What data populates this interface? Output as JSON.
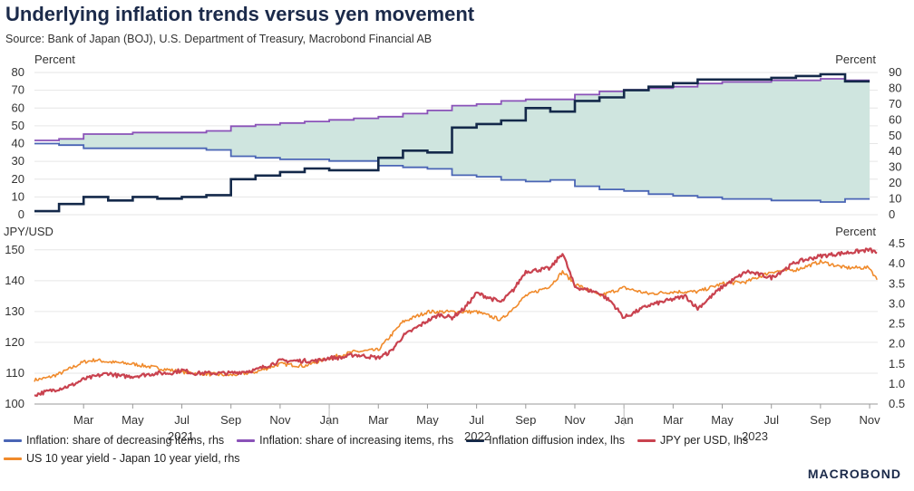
{
  "title": "Underlying inflation trends versus yen movement",
  "source": "Source: Bank of Japan (BOJ), U.S. Department of Treasury, Macrobond Financial AB",
  "brand": "MACROBOND",
  "colors": {
    "decreasing": "#4a65b5",
    "increasing": "#8a52b8",
    "diffusion": "#14294a",
    "jpy": "#c9424f",
    "yield": "#f08a2b",
    "fill": "#cfe5df",
    "grid": "#e6e6e6"
  },
  "legend": [
    {
      "label": "Inflation: share of decreasing items, rhs",
      "color": "#4a65b5"
    },
    {
      "label": "Inflation: share of increasing items, rhs",
      "color": "#8a52b8"
    },
    {
      "label": "Inflation diffusion index, lhs",
      "color": "#14294a"
    },
    {
      "label": "JPY per USD, lhs",
      "color": "#c9424f"
    },
    {
      "label": "US 10 year yield - Japan 10 year yield, rhs",
      "color": "#f08a2b"
    }
  ],
  "x_axis": {
    "month_labels": [
      "Mar",
      "May",
      "Jul",
      "Sep",
      "Nov",
      "Jan",
      "Mar",
      "May",
      "Jul",
      "Sep",
      "Nov",
      "Jan",
      "Mar",
      "May",
      "Jul",
      "Sep",
      "Nov"
    ],
    "years": [
      "2021",
      "2022",
      "2023"
    ]
  },
  "chart_data": [
    {
      "type": "line",
      "title": "Inflation diffusion (top panel)",
      "left_axis": {
        "label": "Percent",
        "ylim": [
          0,
          80
        ],
        "ticks": [
          "0",
          "10",
          "20",
          "30",
          "40",
          "50",
          "60",
          "70",
          "80"
        ]
      },
      "right_axis": {
        "label": "Percent",
        "ylim": [
          0,
          90
        ],
        "ticks": [
          "0",
          "10",
          "20",
          "30",
          "40",
          "50",
          "60",
          "70",
          "80",
          "90"
        ]
      },
      "x_range": [
        "2021-01",
        "2023-11"
      ],
      "categories": [
        "Jan 2021",
        "Feb 2021",
        "Mar 2021",
        "Apr 2021",
        "May 2021",
        "Jun 2021",
        "Jul 2021",
        "Aug 2021",
        "Sep 2021",
        "Oct 2021",
        "Nov 2021",
        "Dec 2021",
        "Jan 2022",
        "Feb 2022",
        "Mar 2022",
        "Apr 2022",
        "May 2022",
        "Jun 2022",
        "Jul 2022",
        "Aug 2022",
        "Sep 2022",
        "Oct 2022",
        "Nov 2022",
        "Dec 2022",
        "Jan 2023",
        "Feb 2023",
        "Mar 2023",
        "Apr 2023",
        "May 2023",
        "Jun 2023",
        "Jul 2023",
        "Aug 2023",
        "Sep 2023",
        "Oct 2023"
      ],
      "series": [
        {
          "name": "Inflation diffusion index, lhs",
          "axis": "left",
          "step": true,
          "values": [
            2,
            6,
            10,
            8,
            10,
            9,
            10,
            11,
            20,
            22,
            24,
            26,
            25,
            25,
            32,
            36,
            35,
            49,
            51,
            53,
            60,
            58,
            64,
            66,
            70,
            72,
            74,
            76,
            76,
            76,
            77,
            78,
            79,
            75
          ]
        },
        {
          "name": "Inflation: share of decreasing items, rhs",
          "axis": "right",
          "step": true,
          "values": [
            45,
            44,
            42,
            42,
            42,
            42,
            42,
            41,
            37,
            36,
            35,
            35,
            34,
            34,
            31,
            30,
            29,
            25,
            24,
            22,
            21,
            22,
            18,
            16,
            15,
            13,
            12,
            11,
            10,
            10,
            9,
            9,
            8,
            10
          ]
        },
        {
          "name": "Inflation: share of increasing items, rhs",
          "axis": "right",
          "step": true,
          "values": [
            47,
            48,
            51,
            51,
            52,
            52,
            52,
            53,
            56,
            57,
            58,
            59,
            60,
            61,
            62,
            64,
            66,
            69,
            70,
            72,
            73,
            73,
            76,
            78,
            79,
            80,
            81,
            83,
            84,
            84,
            85,
            85,
            86,
            85
          ]
        }
      ]
    },
    {
      "type": "line",
      "title": "Yen movement (bottom panel)",
      "left_axis": {
        "label": "JPY/USD",
        "ylim": [
          100,
          152
        ],
        "ticks": [
          "100",
          "110",
          "120",
          "130",
          "140",
          "150"
        ]
      },
      "right_axis": {
        "label": "Percent",
        "ylim": [
          0.5,
          4.5
        ],
        "ticks": [
          "0.5",
          "1.0",
          "1.5",
          "2.0",
          "2.5",
          "3.0",
          "3.5",
          "4.0",
          "4.5"
        ]
      },
      "x_range": [
        "2021-01-01",
        "2023-11-10"
      ],
      "series": [
        {
          "name": "JPY per USD, lhs",
          "axis": "left",
          "points": [
            [
              0,
              103
            ],
            [
              0.5,
              104
            ],
            [
              1,
              105
            ],
            [
              1.5,
              106
            ],
            [
              2,
              108
            ],
            [
              2.5,
              109
            ],
            [
              3,
              110
            ],
            [
              3.5,
              109
            ],
            [
              4,
              109
            ],
            [
              5,
              110
            ],
            [
              5.5,
              110
            ],
            [
              6,
              111
            ],
            [
              6.5,
              110
            ],
            [
              7,
              110
            ],
            [
              8,
              110
            ],
            [
              9,
              111
            ],
            [
              10,
              114
            ],
            [
              11,
              114
            ],
            [
              11.5,
              114
            ],
            [
              12,
              115
            ],
            [
              12.5,
              115
            ],
            [
              13,
              116
            ],
            [
              14,
              115
            ],
            [
              14.5,
              117
            ],
            [
              15,
              122
            ],
            [
              16,
              127
            ],
            [
              16.5,
              129
            ],
            [
              17,
              128
            ],
            [
              17.5,
              131
            ],
            [
              18,
              136
            ],
            [
              19,
              133
            ],
            [
              19.5,
              137
            ],
            [
              20,
              143
            ],
            [
              21,
              144
            ],
            [
              21.5,
              149
            ],
            [
              22,
              138
            ],
            [
              23,
              136
            ],
            [
              23.5,
              133
            ],
            [
              24,
              128
            ],
            [
              25,
              132
            ],
            [
              26,
              134
            ],
            [
              26.5,
              135
            ],
            [
              27,
              131
            ],
            [
              28,
              138
            ],
            [
              29,
              143
            ],
            [
              30,
              141
            ],
            [
              31,
              146
            ],
            [
              32,
              148
            ],
            [
              33,
              149
            ],
            [
              34,
              150
            ],
            [
              34.3,
              149
            ]
          ]
        },
        {
          "name": "US 10 year yield - Japan 10 year yield, rhs",
          "axis": "right",
          "points": [
            [
              0,
              1.1
            ],
            [
              0.5,
              1.15
            ],
            [
              1,
              1.25
            ],
            [
              2,
              1.55
            ],
            [
              2.5,
              1.6
            ],
            [
              3,
              1.55
            ],
            [
              4,
              1.5
            ],
            [
              5,
              1.4
            ],
            [
              6,
              1.3
            ],
            [
              7,
              1.25
            ],
            [
              8,
              1.22
            ],
            [
              9,
              1.3
            ],
            [
              10,
              1.5
            ],
            [
              11,
              1.45
            ],
            [
              12,
              1.65
            ],
            [
              13,
              1.8
            ],
            [
              14,
              1.85
            ],
            [
              15,
              2.55
            ],
            [
              16,
              2.8
            ],
            [
              17,
              2.8
            ],
            [
              18,
              2.8
            ],
            [
              19,
              2.6
            ],
            [
              20,
              3.2
            ],
            [
              21,
              3.45
            ],
            [
              21.5,
              3.8
            ],
            [
              22,
              3.5
            ],
            [
              23,
              3.2
            ],
            [
              24,
              3.4
            ],
            [
              25,
              3.25
            ],
            [
              26,
              3.3
            ],
            [
              27,
              3.3
            ],
            [
              28,
              3.5
            ],
            [
              29,
              3.55
            ],
            [
              30,
              3.8
            ],
            [
              31,
              3.85
            ],
            [
              32,
              4.05
            ],
            [
              33,
              3.9
            ],
            [
              34,
              3.9
            ],
            [
              34.3,
              3.6
            ]
          ]
        }
      ]
    }
  ]
}
